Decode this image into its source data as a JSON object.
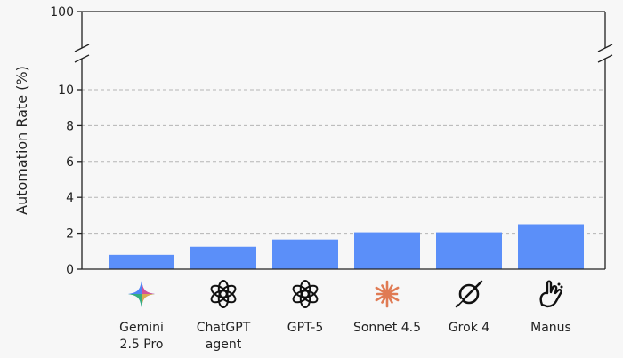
{
  "chart_data": {
    "type": "bar",
    "ylabel": "Automation Rate (%)",
    "categories": [
      {
        "lines": [
          "Gemini",
          "2.5 Pro"
        ],
        "icon": "gemini-logo-icon"
      },
      {
        "lines": [
          "ChatGPT",
          "agent"
        ],
        "icon": "openai-logo-icon"
      },
      {
        "lines": [
          "GPT-5"
        ],
        "icon": "openai-logo-icon"
      },
      {
        "lines": [
          "Sonnet 4.5"
        ],
        "icon": "claude-logo-icon"
      },
      {
        "lines": [
          "Grok 4"
        ],
        "icon": "grok-logo-icon"
      },
      {
        "lines": [
          "Manus"
        ],
        "icon": "manus-logo-icon"
      }
    ],
    "values": [
      0.8,
      1.25,
      1.65,
      2.05,
      2.05,
      2.5
    ],
    "ylim": [
      0,
      10
    ],
    "yticks": [
      0,
      2,
      4,
      6,
      8,
      10
    ],
    "ybreak": true,
    "ytop_tick": 100,
    "grid": true,
    "bar_color": "#5b8ff9"
  }
}
